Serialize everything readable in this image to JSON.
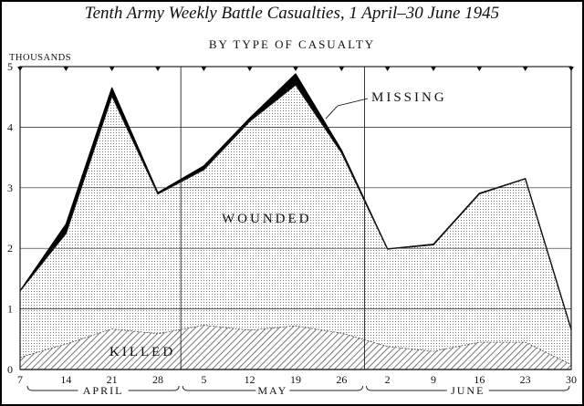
{
  "chart_data": {
    "type": "area",
    "title": "Tenth Army Weekly Battle Casualties, 1 April–30 June 1945",
    "subtitle": "BY TYPE OF CASUALTY",
    "ylabel": "THOUSANDS",
    "xlabel": "",
    "ylim": [
      0,
      5
    ],
    "yticks": [
      "0",
      "1",
      "2",
      "3",
      "4",
      "5"
    ],
    "x": [
      "7",
      "14",
      "21",
      "28",
      "5",
      "12",
      "19",
      "26",
      "2",
      "9",
      "16",
      "23",
      "30"
    ],
    "months": [
      "APRIL",
      "MAY",
      "JUNE"
    ],
    "stacked": true,
    "series": [
      {
        "name": "KILLED",
        "values": [
          0.2,
          0.42,
          0.67,
          0.59,
          0.73,
          0.65,
          0.72,
          0.6,
          0.38,
          0.3,
          0.45,
          0.45,
          0.08
        ]
      },
      {
        "name": "WOUNDED",
        "values": [
          1.1,
          1.83,
          3.85,
          2.31,
          2.57,
          3.45,
          3.98,
          2.98,
          1.61,
          1.76,
          2.45,
          2.7,
          0.58
        ]
      },
      {
        "name": "MISSING",
        "values": [
          0.0,
          0.15,
          0.13,
          0.02,
          0.06,
          0.05,
          0.18,
          0.04,
          0.0,
          0.01,
          0.01,
          0.0,
          0.0
        ]
      }
    ],
    "annotations": [
      "MISSING",
      "WOUNDED",
      "KILLED"
    ],
    "grid": true,
    "colors": {
      "ink": "#111111",
      "killed": "#9a9a9a",
      "wounded": "#bdbdbd",
      "missing": "#000000"
    }
  }
}
